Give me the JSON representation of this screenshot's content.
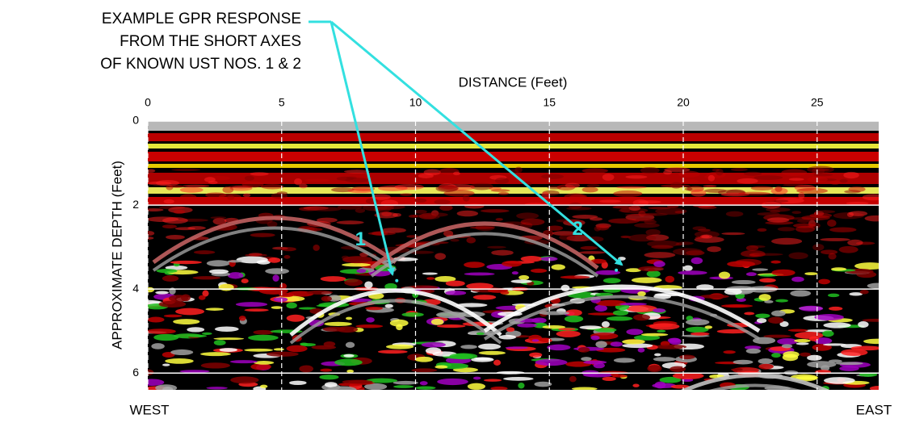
{
  "chart_data": {
    "type": "radargram",
    "annotation": [
      "EXAMPLE GPR RESPONSE",
      "FROM THE SHORT AXES",
      "OF KNOWN UST NOS. 1 & 2"
    ],
    "x_label": "DISTANCE (Feet)",
    "y_label": "APPROXIMATE DEPTH (Feet)",
    "xlim": [
      0,
      27.3
    ],
    "xticks": [
      0,
      5,
      10,
      15,
      20,
      25
    ],
    "ylim": [
      0,
      6.4
    ],
    "yticks": [
      0,
      2,
      4,
      6
    ],
    "targets": [
      {
        "label": "1",
        "x": 9.3,
        "y": 3.8
      },
      {
        "label": "2",
        "x": 17.5,
        "y": 3.55
      }
    ],
    "left_label": "WEST",
    "right_label": "EAST",
    "grid": true,
    "y_inverted": true
  }
}
